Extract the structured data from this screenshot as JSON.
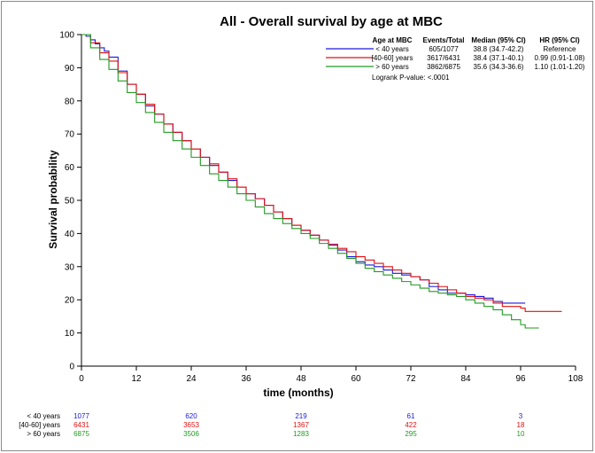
{
  "chart_data": {
    "type": "line",
    "title": "All - Overall survival by age at MBC",
    "xlabel": "time (months)",
    "ylabel": "Survival probability",
    "xlim": [
      0,
      108
    ],
    "ylim": [
      0,
      100
    ],
    "x_ticks": [
      "0",
      "12",
      "24",
      "36",
      "48",
      "60",
      "72",
      "84",
      "96",
      "108"
    ],
    "y_ticks": [
      "0",
      "10",
      "20",
      "30",
      "40",
      "50",
      "60",
      "70",
      "80",
      "90",
      "100"
    ],
    "grid": false,
    "legend": {
      "placement": "top-right",
      "headers": [
        "Age at MBC",
        "Events/Total",
        "Median (95% CI)",
        "HR (95% CI)"
      ],
      "footer": "Logrank P-value: <.0001"
    },
    "series": [
      {
        "name": "< 40 years",
        "color": "#1a1adb",
        "events_total": "605/1077",
        "median": "38.8 (34.7-42.2)",
        "hr": "Reference",
        "points": [
          [
            0,
            100
          ],
          [
            1,
            99.5
          ],
          [
            2,
            98.4
          ],
          [
            3,
            97.2
          ],
          [
            4,
            96
          ],
          [
            5,
            95
          ],
          [
            6,
            93.2
          ],
          [
            8,
            89
          ],
          [
            10,
            85
          ],
          [
            12,
            82
          ],
          [
            14,
            78.5
          ],
          [
            16,
            76
          ],
          [
            18,
            73
          ],
          [
            20,
            70.5
          ],
          [
            22,
            68
          ],
          [
            24,
            65.5
          ],
          [
            26,
            63
          ],
          [
            28,
            60.5
          ],
          [
            30,
            58.5
          ],
          [
            32,
            56
          ],
          [
            34,
            54
          ],
          [
            36,
            52
          ],
          [
            38,
            50.5
          ],
          [
            40,
            48.5
          ],
          [
            42,
            46.5
          ],
          [
            44,
            44.5
          ],
          [
            46,
            42.5
          ],
          [
            48,
            41
          ],
          [
            50,
            39.5
          ],
          [
            52,
            38
          ],
          [
            54,
            36.5
          ],
          [
            56,
            35
          ],
          [
            58,
            33
          ],
          [
            60,
            31.5
          ],
          [
            62,
            30.5
          ],
          [
            64,
            30
          ],
          [
            66,
            29
          ],
          [
            68,
            28
          ],
          [
            70,
            27.5
          ],
          [
            72,
            27
          ],
          [
            74,
            26
          ],
          [
            76,
            24
          ],
          [
            78,
            23
          ],
          [
            80,
            22
          ],
          [
            82,
            22
          ],
          [
            84,
            21.5
          ],
          [
            86,
            21
          ],
          [
            88,
            20.5
          ],
          [
            90,
            19.5
          ],
          [
            92,
            19
          ],
          [
            94,
            19
          ],
          [
            97,
            19
          ]
        ]
      },
      {
        "name": "[40-60] years",
        "color": "#e01010",
        "events_total": "3617/6431",
        "median": "38.4 (37.1-40.1)",
        "hr": "0.99 (0.91-1.08)",
        "points": [
          [
            0,
            100
          ],
          [
            2,
            97.5
          ],
          [
            4,
            94.5
          ],
          [
            6,
            92
          ],
          [
            8,
            88.5
          ],
          [
            10,
            85
          ],
          [
            12,
            82
          ],
          [
            14,
            79
          ],
          [
            16,
            76
          ],
          [
            18,
            73
          ],
          [
            20,
            70.5
          ],
          [
            22,
            68
          ],
          [
            24,
            65.5
          ],
          [
            26,
            63
          ],
          [
            28,
            61
          ],
          [
            30,
            58.5
          ],
          [
            32,
            56.5
          ],
          [
            34,
            54
          ],
          [
            36,
            52
          ],
          [
            38,
            50.5
          ],
          [
            40,
            48.5
          ],
          [
            42,
            46.5
          ],
          [
            44,
            44.5
          ],
          [
            46,
            42.5
          ],
          [
            48,
            41
          ],
          [
            50,
            39.5
          ],
          [
            52,
            38
          ],
          [
            54,
            36.8
          ],
          [
            56,
            35.5
          ],
          [
            58,
            34.5
          ],
          [
            60,
            33
          ],
          [
            62,
            32
          ],
          [
            64,
            31
          ],
          [
            66,
            30
          ],
          [
            68,
            29
          ],
          [
            70,
            28
          ],
          [
            72,
            27
          ],
          [
            74,
            26
          ],
          [
            76,
            25
          ],
          [
            78,
            24
          ],
          [
            80,
            23
          ],
          [
            82,
            22
          ],
          [
            84,
            21
          ],
          [
            86,
            20.5
          ],
          [
            88,
            20
          ],
          [
            90,
            19
          ],
          [
            92,
            18
          ],
          [
            94,
            18
          ],
          [
            96,
            17.5
          ],
          [
            97,
            16.5
          ],
          [
            105,
            16.5
          ]
        ]
      },
      {
        "name": "> 60 years",
        "color": "#229922",
        "events_total": "3862/6875",
        "median": "35.6 (34.3-36.6)",
        "hr": "1.10 (1.01-1.20)",
        "points": [
          [
            0,
            100
          ],
          [
            2,
            96
          ],
          [
            4,
            92.5
          ],
          [
            6,
            89.5
          ],
          [
            8,
            86
          ],
          [
            10,
            82.5
          ],
          [
            12,
            79.5
          ],
          [
            14,
            76.5
          ],
          [
            16,
            73.5
          ],
          [
            18,
            70.5
          ],
          [
            20,
            68
          ],
          [
            22,
            65.5
          ],
          [
            24,
            63
          ],
          [
            26,
            60.5
          ],
          [
            28,
            58
          ],
          [
            30,
            56
          ],
          [
            32,
            54
          ],
          [
            34,
            52
          ],
          [
            36,
            50
          ],
          [
            38,
            48
          ],
          [
            40,
            46
          ],
          [
            42,
            44.5
          ],
          [
            44,
            43
          ],
          [
            46,
            41.5
          ],
          [
            48,
            40
          ],
          [
            50,
            38.5
          ],
          [
            52,
            37
          ],
          [
            54,
            35.5
          ],
          [
            56,
            34
          ],
          [
            58,
            32.5
          ],
          [
            60,
            31
          ],
          [
            62,
            29.5
          ],
          [
            64,
            28.5
          ],
          [
            66,
            27.5
          ],
          [
            68,
            26.5
          ],
          [
            70,
            25.5
          ],
          [
            72,
            24.5
          ],
          [
            74,
            23.5
          ],
          [
            76,
            22.5
          ],
          [
            78,
            22
          ],
          [
            80,
            21.5
          ],
          [
            82,
            21
          ],
          [
            84,
            20
          ],
          [
            86,
            19
          ],
          [
            88,
            18
          ],
          [
            90,
            17
          ],
          [
            92,
            15.5
          ],
          [
            94,
            14
          ],
          [
            96,
            12.5
          ],
          [
            97,
            11.5
          ],
          [
            100,
            11.5
          ]
        ]
      }
    ],
    "risk_table": {
      "times": [
        0,
        24,
        48,
        72,
        96
      ],
      "rows": [
        {
          "label": "< 40 years",
          "color": "#1a1adb",
          "values": [
            "1077",
            "620",
            "219",
            "61",
            "3"
          ]
        },
        {
          "label": "[40-60] years",
          "color": "#e01010",
          "values": [
            "6431",
            "3653",
            "1367",
            "422",
            "18"
          ]
        },
        {
          "label": "> 60 years",
          "color": "#229922",
          "values": [
            "6875",
            "3506",
            "1283",
            "295",
            "10"
          ]
        }
      ]
    }
  }
}
